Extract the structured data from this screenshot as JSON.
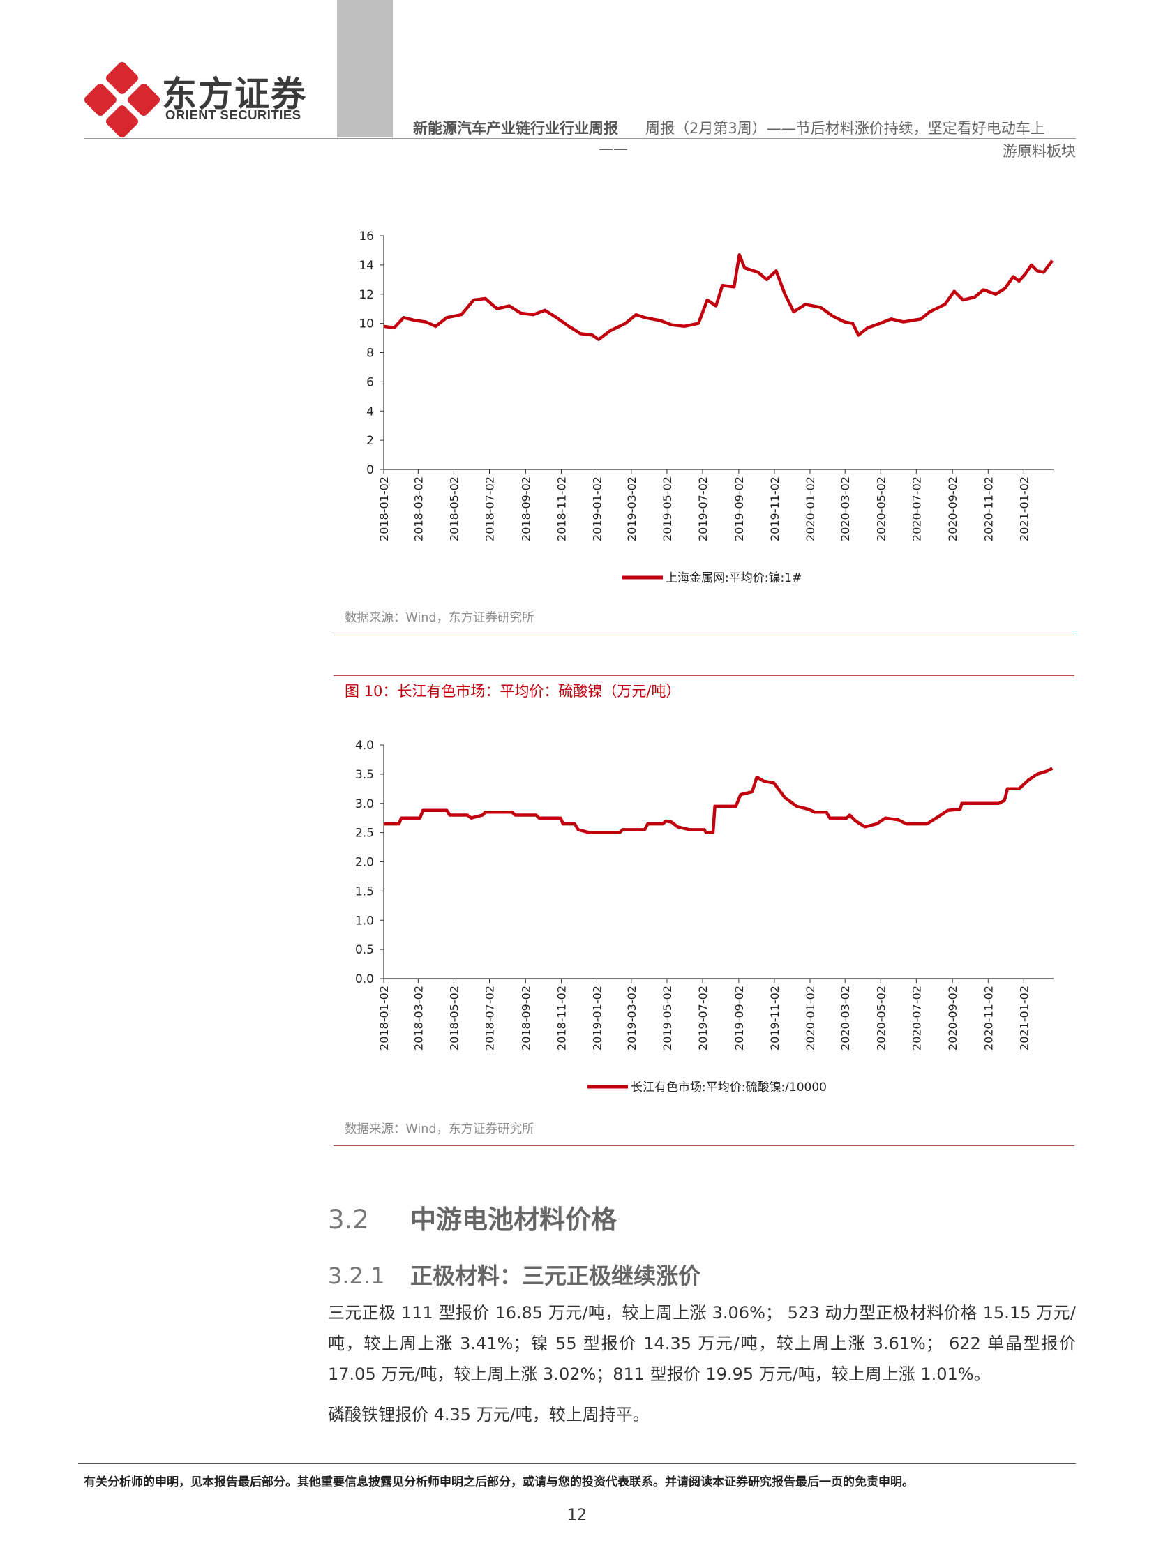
{
  "header": {
    "logo_cn": "东方证券",
    "logo_en": "ORIENT SECURITIES",
    "report_name": "新能源汽车产业链行业行业周报",
    "subtitle_line1": "周报（2月第3周）——节后材料涨价持续，坚定看好电动车上",
    "subtitle_dash": "——",
    "subtitle_line2": "游原料板块",
    "brand_color": "#d7282f"
  },
  "chart1": {
    "source": "数据来源：Wind，东方证券研究所",
    "chart_data": {
      "type": "line",
      "title": "",
      "xlabel": "",
      "ylabel": "",
      "ylim": [
        0,
        16
      ],
      "yticks": [
        "16",
        "14",
        "12",
        "10",
        "8",
        "6",
        "4",
        "2",
        "0"
      ],
      "xticks": [
        "2018-01-02",
        "2018-03-02",
        "2018-05-02",
        "2018-07-02",
        "2018-09-02",
        "2018-11-02",
        "2019-01-02",
        "2019-03-02",
        "2019-05-02",
        "2019-07-02",
        "2019-09-02",
        "2019-11-02",
        "2020-01-02",
        "2020-03-02",
        "2020-05-02",
        "2020-07-02",
        "2020-09-02",
        "2020-11-02",
        "2021-01-02"
      ],
      "grid": false,
      "legend_position": "bottom",
      "series": [
        {
          "name": "上海金属网:平均价:镍:1#",
          "color": "#c0000d",
          "points": [
            [
              "2018-01-02",
              9.8
            ],
            [
              "2018-01-20",
              9.7
            ],
            [
              "2018-02-05",
              10.4
            ],
            [
              "2018-02-25",
              10.2
            ],
            [
              "2018-03-15",
              10.1
            ],
            [
              "2018-04-01",
              9.8
            ],
            [
              "2018-04-20",
              10.4
            ],
            [
              "2018-05-15",
              10.6
            ],
            [
              "2018-06-05",
              11.6
            ],
            [
              "2018-06-25",
              11.7
            ],
            [
              "2018-07-15",
              11.0
            ],
            [
              "2018-08-05",
              11.2
            ],
            [
              "2018-08-25",
              10.7
            ],
            [
              "2018-09-15",
              10.6
            ],
            [
              "2018-10-05",
              10.9
            ],
            [
              "2018-10-25",
              10.4
            ],
            [
              "2018-11-15",
              9.8
            ],
            [
              "2018-12-05",
              9.3
            ],
            [
              "2018-12-25",
              9.2
            ],
            [
              "2019-01-05",
              8.9
            ],
            [
              "2019-01-25",
              9.5
            ],
            [
              "2019-02-20",
              10.0
            ],
            [
              "2019-03-10",
              10.6
            ],
            [
              "2019-03-25",
              10.4
            ],
            [
              "2019-04-20",
              10.2
            ],
            [
              "2019-05-10",
              9.9
            ],
            [
              "2019-06-01",
              9.8
            ],
            [
              "2019-06-25",
              10.0
            ],
            [
              "2019-07-10",
              11.6
            ],
            [
              "2019-07-25",
              11.2
            ],
            [
              "2019-08-05",
              12.6
            ],
            [
              "2019-08-25",
              12.5
            ],
            [
              "2019-09-03",
              14.7
            ],
            [
              "2019-09-12",
              13.8
            ],
            [
              "2019-10-05",
              13.5
            ],
            [
              "2019-10-20",
              13.0
            ],
            [
              "2019-11-05",
              13.6
            ],
            [
              "2019-11-20",
              12.0
            ],
            [
              "2019-12-05",
              10.8
            ],
            [
              "2019-12-25",
              11.3
            ],
            [
              "2020-01-20",
              11.1
            ],
            [
              "2020-02-10",
              10.5
            ],
            [
              "2020-03-01",
              10.1
            ],
            [
              "2020-03-15",
              10.0
            ],
            [
              "2020-03-25",
              9.2
            ],
            [
              "2020-04-10",
              9.7
            ],
            [
              "2020-05-01",
              10.0
            ],
            [
              "2020-05-20",
              10.3
            ],
            [
              "2020-06-10",
              10.1
            ],
            [
              "2020-07-10",
              10.3
            ],
            [
              "2020-07-25",
              10.8
            ],
            [
              "2020-08-20",
              11.3
            ],
            [
              "2020-09-05",
              12.2
            ],
            [
              "2020-09-20",
              11.6
            ],
            [
              "2020-10-10",
              11.8
            ],
            [
              "2020-10-25",
              12.3
            ],
            [
              "2020-11-15",
              12.0
            ],
            [
              "2020-12-01",
              12.4
            ],
            [
              "2020-12-15",
              13.2
            ],
            [
              "2020-12-25",
              12.9
            ],
            [
              "2021-01-05",
              13.4
            ],
            [
              "2021-01-15",
              14.0
            ],
            [
              "2021-01-25",
              13.6
            ],
            [
              "2021-02-05",
              13.5
            ],
            [
              "2021-02-20",
              14.3
            ]
          ]
        }
      ]
    }
  },
  "figure10": {
    "title": "图 10：长江有色市场：平均价：硫酸镍（万元/吨）"
  },
  "chart2": {
    "source": "数据来源：Wind，东方证券研究所",
    "chart_data": {
      "type": "line",
      "title": "",
      "xlabel": "",
      "ylabel": "",
      "ylim": [
        0,
        4
      ],
      "yticks": [
        "4.0",
        "3.5",
        "3.0",
        "2.5",
        "2.0",
        "1.5",
        "1.0",
        "0.5",
        "0.0"
      ],
      "xticks": [
        "2018-01-02",
        "2018-03-02",
        "2018-05-02",
        "2018-07-02",
        "2018-09-02",
        "2018-11-02",
        "2019-01-02",
        "2019-03-02",
        "2019-05-02",
        "2019-07-02",
        "2019-09-02",
        "2019-11-02",
        "2020-01-02",
        "2020-03-02",
        "2020-05-02",
        "2020-07-02",
        "2020-09-02",
        "2020-11-02",
        "2021-01-02"
      ],
      "grid": false,
      "legend_position": "bottom",
      "series": [
        {
          "name": "长江有色市场:平均价:硫酸镍:/10000",
          "color": "#c0000d",
          "points": [
            [
              "2018-01-02",
              2.65
            ],
            [
              "2018-01-28",
              2.65
            ],
            [
              "2018-02-01",
              2.75
            ],
            [
              "2018-03-05",
              2.75
            ],
            [
              "2018-03-10",
              2.88
            ],
            [
              "2018-04-20",
              2.88
            ],
            [
              "2018-04-25",
              2.8
            ],
            [
              "2018-05-25",
              2.8
            ],
            [
              "2018-06-01",
              2.75
            ],
            [
              "2018-06-20",
              2.8
            ],
            [
              "2018-06-25",
              2.85
            ],
            [
              "2018-08-10",
              2.85
            ],
            [
              "2018-08-15",
              2.8
            ],
            [
              "2018-09-20",
              2.8
            ],
            [
              "2018-09-25",
              2.75
            ],
            [
              "2018-11-01",
              2.75
            ],
            [
              "2018-11-05",
              2.65
            ],
            [
              "2018-11-25",
              2.65
            ],
            [
              "2018-12-01",
              2.55
            ],
            [
              "2018-12-20",
              2.5
            ],
            [
              "2019-02-10",
              2.5
            ],
            [
              "2019-02-15",
              2.55
            ],
            [
              "2019-03-25",
              2.55
            ],
            [
              "2019-03-30",
              2.65
            ],
            [
              "2019-04-25",
              2.65
            ],
            [
              "2019-04-30",
              2.7
            ],
            [
              "2019-05-10",
              2.68
            ],
            [
              "2019-05-20",
              2.6
            ],
            [
              "2019-06-10",
              2.55
            ],
            [
              "2019-07-05",
              2.55
            ],
            [
              "2019-07-08",
              2.5
            ],
            [
              "2019-07-20",
              2.5
            ],
            [
              "2019-07-23",
              2.95
            ],
            [
              "2019-08-28",
              2.95
            ],
            [
              "2019-09-05",
              3.15
            ],
            [
              "2019-09-25",
              3.2
            ],
            [
              "2019-10-03",
              3.45
            ],
            [
              "2019-10-15",
              3.38
            ],
            [
              "2019-11-01",
              3.35
            ],
            [
              "2019-11-20",
              3.1
            ],
            [
              "2019-12-10",
              2.95
            ],
            [
              "2019-12-30",
              2.9
            ],
            [
              "2020-01-10",
              2.85
            ],
            [
              "2020-01-30",
              2.85
            ],
            [
              "2020-02-05",
              2.75
            ],
            [
              "2020-03-05",
              2.75
            ],
            [
              "2020-03-10",
              2.8
            ],
            [
              "2020-03-20",
              2.7
            ],
            [
              "2020-04-05",
              2.6
            ],
            [
              "2020-04-25",
              2.65
            ],
            [
              "2020-05-10",
              2.75
            ],
            [
              "2020-06-01",
              2.72
            ],
            [
              "2020-06-15",
              2.65
            ],
            [
              "2020-07-20",
              2.65
            ],
            [
              "2020-08-05",
              2.75
            ],
            [
              "2020-08-25",
              2.88
            ],
            [
              "2020-09-15",
              2.9
            ],
            [
              "2020-09-18",
              3.0
            ],
            [
              "2020-11-20",
              3.0
            ],
            [
              "2020-11-30",
              3.05
            ],
            [
              "2020-12-05",
              3.25
            ],
            [
              "2020-12-25",
              3.25
            ],
            [
              "2021-01-10",
              3.4
            ],
            [
              "2021-01-25",
              3.5
            ],
            [
              "2021-02-10",
              3.55
            ],
            [
              "2021-02-20",
              3.6
            ]
          ]
        }
      ]
    }
  },
  "section": {
    "num": "3.2",
    "title": "中游电池材料价格"
  },
  "subsection": {
    "num": "3.2.1",
    "title": "正极材料：三元正极继续涨价"
  },
  "paragraphs": {
    "p1": "三元正极 111 型报价 16.85 万元/吨，较上周上涨 3.06%； 523 动力型正极材料价格 15.15 万元/吨，较上周上涨 3.41%；镍 55 型报价 14.35 万元/吨，较上周上涨 3.61%； 622 单晶型报价 17.05 万元/吨，较上周上涨 3.02%；811 型报价 19.95 万元/吨，较上周上涨 1.01%。",
    "p2": "磷酸铁锂报价 4.35 万元/吨，较上周持平。"
  },
  "footer": {
    "disclaimer": "有关分析师的申明，见本报告最后部分。其他重要信息披露见分析师申明之后部分，或请与您的投资代表联系。并请阅读本证券研究报告最后一页的免责申明。",
    "page_number": "12"
  }
}
